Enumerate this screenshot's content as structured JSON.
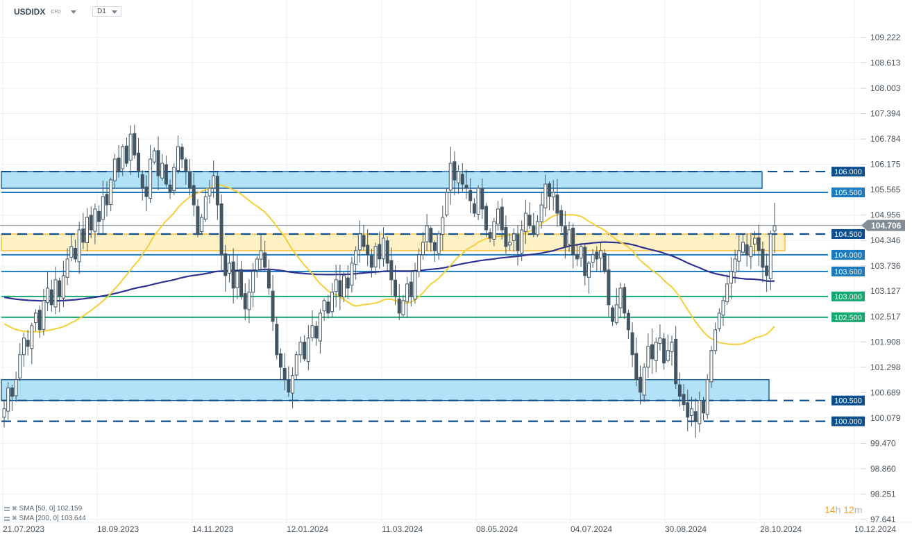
{
  "header": {
    "symbol": "USDIDX",
    "instrument_type": "CFD",
    "timeframe": "D1"
  },
  "legend": [
    {
      "label": "SMA [50, 0] 102.159",
      "name": "SMA",
      "params": "[50, 0]",
      "value": "102.159"
    },
    {
      "label": "SMA [200, 0] 103.644",
      "name": "SMA",
      "params": "[200, 0]",
      "value": "103.644"
    }
  ],
  "timer": {
    "hours": "14",
    "h": "h",
    "minutes": "12",
    "m": "m"
  },
  "colors": {
    "candle": "#425563",
    "sma50": "#f5cf3a",
    "sma200": "#2e3192",
    "blue_level": "#1a7bbf",
    "dark_blue_level": "#0b4f8f",
    "green_level": "#16a872",
    "zone_blue": "#aee0f7",
    "zone_yellow": "#fdf0bf",
    "current_price": "#838d95",
    "grid": "#eef0f2",
    "timer_orange": "#f7a21b"
  },
  "chart_data": {
    "type": "candlestick",
    "title": "USDIDX CFD D1",
    "xlabel": "",
    "ylabel": "",
    "ylim": [
      97.641,
      109.222
    ],
    "grid": true,
    "y_ticks": [
      "109.222",
      "108.613",
      "108.003",
      "107.394",
      "106.784",
      "106.175",
      "105.565",
      "104.956",
      "104.346",
      "103.736",
      "103.127",
      "102.517",
      "101.908",
      "101.298",
      "100.689",
      "100.079",
      "99.470",
      "98.860",
      "98.251",
      "97.641"
    ],
    "x_ticks": [
      "21.07.2023",
      "18.09.2023",
      "14.11.2023",
      "12.01.2024",
      "11.03.2024",
      "08.05.2024",
      "04.07.2024",
      "30.08.2024",
      "28.10.2024",
      "10.12.2024"
    ],
    "current_price": "104.706",
    "horizontal_levels": [
      {
        "value": "106.000",
        "style": "dashed",
        "color": "dark_blue"
      },
      {
        "value": "105.500",
        "style": "solid",
        "color": "blue"
      },
      {
        "value": "104.500",
        "style": "dashed",
        "color": "dark_blue"
      },
      {
        "value": "104.000",
        "style": "solid",
        "color": "blue"
      },
      {
        "value": "103.600",
        "style": "solid",
        "color": "blue"
      },
      {
        "value": "103.000",
        "style": "solid",
        "color": "green"
      },
      {
        "value": "102.500",
        "style": "solid",
        "color": "green"
      },
      {
        "value": "100.500",
        "style": "dashed",
        "color": "dark_blue"
      },
      {
        "value": "100.000",
        "style": "dashed",
        "color": "dark_blue"
      }
    ],
    "zones": [
      {
        "color": "blue",
        "top": 106.0,
        "bottom": 105.6,
        "x_end_date": "~20.11.2024"
      },
      {
        "color": "yellow",
        "top": 104.5,
        "bottom": 104.1,
        "x_end_date": "~07.11.2024"
      },
      {
        "color": "blue",
        "top": 101.0,
        "bottom": 100.5,
        "x_end_date": "~22.11.2024"
      }
    ],
    "series": [
      {
        "name": "SMA 50",
        "last": 102.159
      },
      {
        "name": "SMA 200",
        "last": 103.644
      }
    ],
    "closes": [
      100.3,
      100.8,
      100.6,
      101.0,
      101.6,
      102.0,
      101.8,
      102.3,
      102.6,
      102.2,
      102.9,
      103.2,
      102.8,
      103.4,
      103.0,
      103.5,
      103.9,
      104.2,
      103.9,
      104.6,
      104.3,
      104.9,
      104.6,
      105.1,
      104.8,
      105.4,
      105.2,
      105.8,
      106.3,
      106.0,
      106.6,
      106.2,
      106.9,
      106.4,
      106.0,
      105.6,
      105.4,
      106.3,
      106.5,
      105.9,
      106.2,
      105.7,
      105.5,
      106.1,
      106.6,
      106.3,
      106.0,
      105.6,
      105.2,
      104.5,
      104.9,
      105.4,
      105.6,
      105.9,
      105.2,
      104.0,
      103.5,
      103.8,
      103.2,
      103.6,
      103.0,
      102.7,
      103.1,
      103.6,
      103.9,
      104.1,
      103.7,
      103.2,
      102.4,
      101.6,
      101.3,
      101.0,
      100.7,
      101.1,
      101.6,
      101.9,
      101.5,
      102.0,
      102.3,
      102.0,
      102.6,
      102.9,
      102.6,
      103.1,
      103.4,
      103.0,
      103.5,
      103.2,
      103.8,
      104.1,
      104.5,
      104.2,
      104.0,
      103.7,
      104.2,
      103.9,
      104.4,
      103.8,
      103.4,
      103.0,
      102.6,
      102.9,
      103.3,
      103.0,
      103.6,
      104.0,
      104.3,
      104.7,
      104.3,
      104.1,
      104.5,
      104.9,
      105.5,
      106.2,
      105.8,
      106.0,
      105.7,
      105.6,
      105.3,
      105.0,
      105.6,
      105.1,
      104.6,
      104.4,
      104.8,
      105.1,
      104.6,
      104.2,
      104.3,
      104.5,
      104.1,
      104.6,
      105.0,
      104.7,
      104.5,
      104.8,
      105.2,
      105.7,
      105.4,
      105.5,
      105.0,
      104.7,
      104.2,
      104.6,
      104.0,
      103.9,
      104.2,
      103.5,
      103.8,
      104.0,
      103.9,
      104.1,
      103.6,
      102.8,
      102.4,
      102.8,
      103.2,
      102.6,
      102.2,
      101.6,
      101.0,
      100.7,
      101.3,
      101.8,
      101.5,
      101.9,
      102.0,
      101.4,
      101.7,
      101.9,
      100.9,
      100.6,
      100.4,
      100.1,
      100.3,
      100.0,
      100.5,
      100.2,
      101.0,
      101.7,
      102.2,
      102.6,
      102.9,
      103.3,
      103.6,
      103.9,
      104.1,
      104.3,
      104.0,
      104.2,
      104.4,
      104.1,
      103.7,
      103.5,
      104.5,
      104.7
    ]
  }
}
